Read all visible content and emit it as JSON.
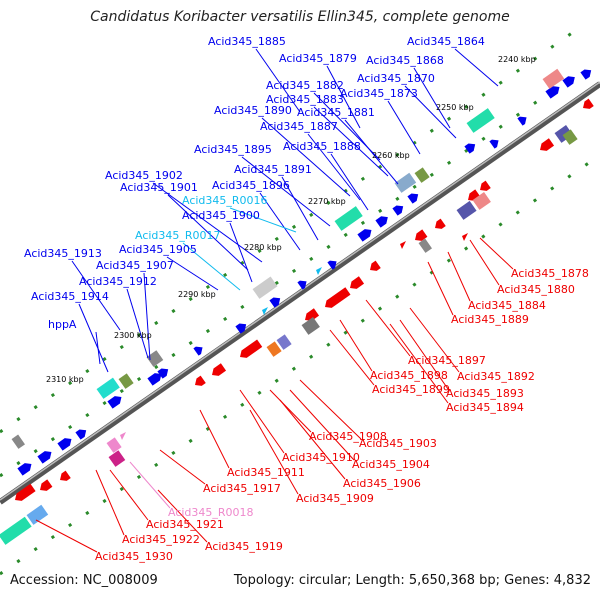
{
  "map": {
    "title": "Candidatus Koribacter versatilis Ellin345, complete genome",
    "accession": "Accession: NC_008009",
    "summary": "Topology: circular; Length: 5,650,368 bp; Genes: 4,832"
  },
  "colors": {
    "forward_gene": "#0000ee",
    "reverse_gene": "#ee0000",
    "forward_rna": "#11bbee",
    "reverse_rna": "#ee88cc",
    "backbone": "#666666"
  },
  "kbp_ticks": [
    "2240 kbp",
    "2250 kbp",
    "2260 kbp",
    "2270 kbp",
    "2280 kbp",
    "2290 kbp",
    "2300 kbp",
    "2310 kbp"
  ],
  "forward_labels": [
    {
      "text": "Acid345_1885",
      "kind": "gene"
    },
    {
      "text": "Acid345_1879",
      "kind": "gene"
    },
    {
      "text": "Acid345_1868",
      "kind": "gene"
    },
    {
      "text": "Acid345_1864",
      "kind": "gene"
    },
    {
      "text": "Acid345_1870",
      "kind": "gene"
    },
    {
      "text": "Acid345_1882",
      "kind": "gene"
    },
    {
      "text": "Acid345_1873",
      "kind": "gene"
    },
    {
      "text": "Acid345_1883",
      "kind": "gene"
    },
    {
      "text": "Acid345_1890",
      "kind": "gene"
    },
    {
      "text": "Acid345_1881",
      "kind": "gene"
    },
    {
      "text": "Acid345_1887",
      "kind": "gene"
    },
    {
      "text": "Acid345_1895",
      "kind": "gene"
    },
    {
      "text": "Acid345_1888",
      "kind": "gene"
    },
    {
      "text": "Acid345_1891",
      "kind": "gene"
    },
    {
      "text": "Acid345_1902",
      "kind": "gene"
    },
    {
      "text": "Acid345_1896",
      "kind": "gene"
    },
    {
      "text": "Acid345_1901",
      "kind": "gene"
    },
    {
      "text": "Acid345_R0016",
      "kind": "rna"
    },
    {
      "text": "Acid345_1900",
      "kind": "gene"
    },
    {
      "text": "Acid345_R0017",
      "kind": "rna"
    },
    {
      "text": "Acid345_1905",
      "kind": "gene"
    },
    {
      "text": "Acid345_1913",
      "kind": "gene"
    },
    {
      "text": "Acid345_1907",
      "kind": "gene"
    },
    {
      "text": "Acid345_1912",
      "kind": "gene"
    },
    {
      "text": "Acid345_1914",
      "kind": "gene"
    },
    {
      "text": "hppA",
      "kind": "gene"
    }
  ],
  "reverse_labels": [
    {
      "text": "Acid345_1878",
      "kind": "gene"
    },
    {
      "text": "Acid345_1880",
      "kind": "gene"
    },
    {
      "text": "Acid345_1884",
      "kind": "gene"
    },
    {
      "text": "Acid345_1889",
      "kind": "gene"
    },
    {
      "text": "Acid345_1897",
      "kind": "gene"
    },
    {
      "text": "Acid345_1892",
      "kind": "gene"
    },
    {
      "text": "Acid345_1898",
      "kind": "gene"
    },
    {
      "text": "Acid345_1893",
      "kind": "gene"
    },
    {
      "text": "Acid345_1899",
      "kind": "gene"
    },
    {
      "text": "Acid345_1894",
      "kind": "gene"
    },
    {
      "text": "Acid345_1908",
      "kind": "gene"
    },
    {
      "text": "Acid345_1903",
      "kind": "gene"
    },
    {
      "text": "Acid345_1910",
      "kind": "gene"
    },
    {
      "text": "Acid345_1904",
      "kind": "gene"
    },
    {
      "text": "Acid345_1911",
      "kind": "gene"
    },
    {
      "text": "Acid345_1906",
      "kind": "gene"
    },
    {
      "text": "Acid345_1917",
      "kind": "gene"
    },
    {
      "text": "Acid345_1909",
      "kind": "gene"
    },
    {
      "text": "Acid345_R0018",
      "kind": "rna"
    },
    {
      "text": "Acid345_1921",
      "kind": "gene"
    },
    {
      "text": "Acid345_1919",
      "kind": "gene"
    },
    {
      "text": "Acid345_1922",
      "kind": "gene"
    },
    {
      "text": "Acid345_1930",
      "kind": "gene"
    }
  ]
}
